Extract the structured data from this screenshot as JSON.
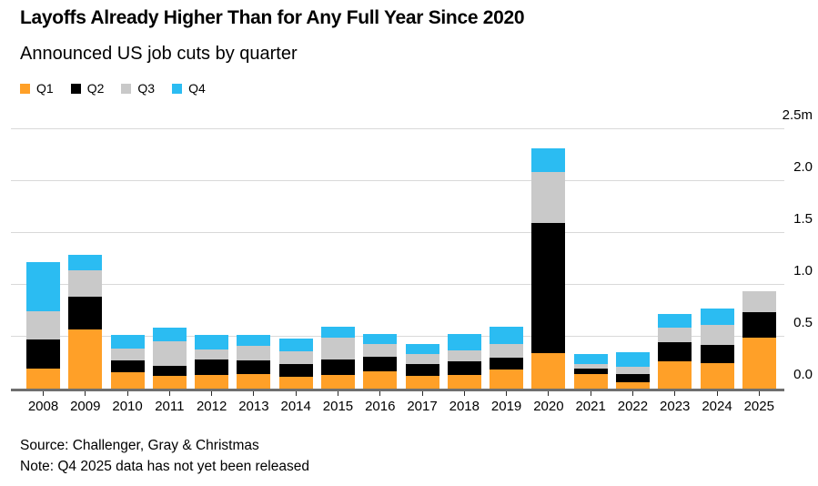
{
  "header": {
    "title": "Layoffs Already Higher Than for Any Full Year Since 2020",
    "subtitle": "Announced US job cuts by quarter"
  },
  "footer": {
    "source": "Source: Challenger, Gray & Christmas",
    "note": "Note: Q4 2025 data has not yet been released"
  },
  "colors": {
    "q1_orange": "#FFA028",
    "q2_black": "#000000",
    "q3_gray": "#C9C9C9",
    "q4_blue": "#2BBCF2",
    "gridline": "#D9D9D9",
    "axis_line": "#6F6F6F",
    "tick": "#2A2A2A",
    "text": "#000000"
  },
  "y_axis": {
    "ticks": [
      {
        "value": 0.0,
        "label": "0.0"
      },
      {
        "value": 0.5,
        "label": "0.5"
      },
      {
        "value": 1.0,
        "label": "1.0"
      },
      {
        "value": 1.5,
        "label": "1.5"
      },
      {
        "value": 2.0,
        "label": "2.0"
      },
      {
        "value": 2.5,
        "label": "2.5m"
      }
    ]
  },
  "chart_data": {
    "type": "bar",
    "stacked": true,
    "title": "Layoffs Already Higher Than for Any Full Year Since 2020",
    "subtitle": "Announced US job cuts by quarter",
    "unit": "millions of announced US job cuts",
    "ylim": [
      0,
      2.5
    ],
    "grid": true,
    "legend_position": "top-left",
    "categories": [
      "2008",
      "2009",
      "2010",
      "2011",
      "2012",
      "2013",
      "2014",
      "2015",
      "2016",
      "2017",
      "2018",
      "2019",
      "2020",
      "2021",
      "2022",
      "2023",
      "2024",
      "2025"
    ],
    "series": [
      {
        "name": "Q1",
        "color": "#FFA028",
        "values": [
          0.19,
          0.57,
          0.16,
          0.12,
          0.13,
          0.14,
          0.11,
          0.13,
          0.17,
          0.12,
          0.13,
          0.18,
          0.34,
          0.14,
          0.06,
          0.26,
          0.25,
          0.49
        ]
      },
      {
        "name": "Q2",
        "color": "#000000",
        "values": [
          0.28,
          0.32,
          0.11,
          0.1,
          0.15,
          0.13,
          0.13,
          0.15,
          0.14,
          0.12,
          0.13,
          0.12,
          1.26,
          0.05,
          0.08,
          0.19,
          0.17,
          0.25
        ]
      },
      {
        "name": "Q3",
        "color": "#C9C9C9",
        "values": [
          0.28,
          0.25,
          0.12,
          0.24,
          0.1,
          0.14,
          0.12,
          0.21,
          0.12,
          0.09,
          0.11,
          0.13,
          0.49,
          0.05,
          0.07,
          0.14,
          0.19,
          0.2
        ]
      },
      {
        "name": "Q4",
        "color": "#2BBCF2",
        "values": [
          0.47,
          0.15,
          0.13,
          0.13,
          0.14,
          0.11,
          0.12,
          0.11,
          0.1,
          0.1,
          0.16,
          0.17,
          0.23,
          0.09,
          0.14,
          0.13,
          0.16,
          0
        ]
      }
    ],
    "totals": [
      1.22,
      1.29,
      0.52,
      0.59,
      0.52,
      0.52,
      0.48,
      0.6,
      0.53,
      0.43,
      0.53,
      0.6,
      2.32,
      0.33,
      0.35,
      0.72,
      0.77,
      0.94
    ]
  }
}
